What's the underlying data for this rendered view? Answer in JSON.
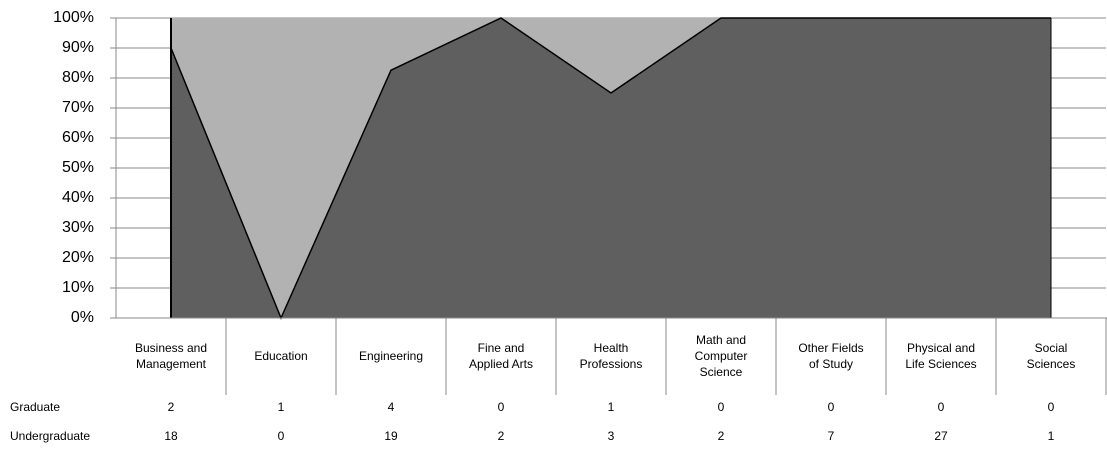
{
  "chart_data": {
    "type": "area",
    "stacked_percent": true,
    "categories": [
      "Business and Management",
      "Education",
      "Engineering",
      "Fine and Applied Arts",
      "Health Professions",
      "Math and Computer Science",
      "Other Fields of Study",
      "Physical and Life Sciences",
      "Social Sciences"
    ],
    "series": [
      {
        "name": "Graduate",
        "color": "#b2b2b2",
        "values": [
          2,
          1,
          4,
          0,
          1,
          0,
          0,
          0,
          0
        ]
      },
      {
        "name": "Undergraduate",
        "color": "#5f5f5f",
        "values": [
          18,
          0,
          19,
          2,
          3,
          2,
          7,
          27,
          1
        ]
      }
    ],
    "ylim": [
      0,
      100
    ],
    "yticks": [
      {
        "value": 0,
        "label": "0%"
      },
      {
        "value": 10,
        "label": "10%"
      },
      {
        "value": 20,
        "label": "20%"
      },
      {
        "value": 30,
        "label": "30%"
      },
      {
        "value": 40,
        "label": "40%"
      },
      {
        "value": 50,
        "label": "50%"
      },
      {
        "value": 60,
        "label": "60%"
      },
      {
        "value": 70,
        "label": "70%"
      },
      {
        "value": 80,
        "label": "80%"
      },
      {
        "value": 90,
        "label": "90%"
      },
      {
        "value": 100,
        "label": "100%"
      }
    ],
    "grid": true
  }
}
